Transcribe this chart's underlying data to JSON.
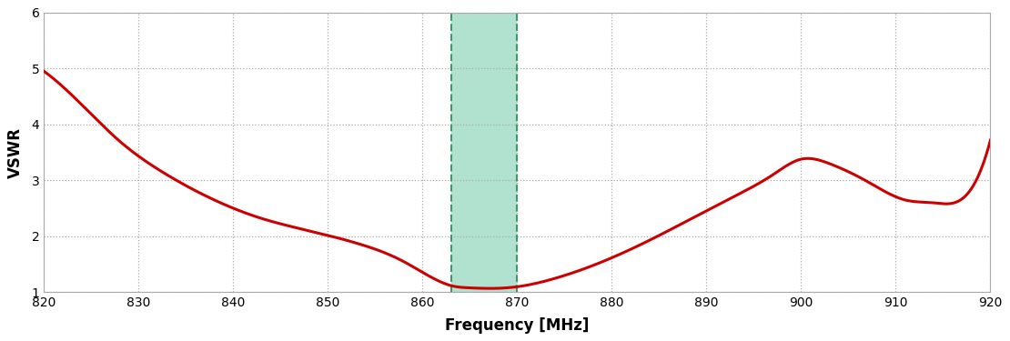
{
  "title": "",
  "xlabel": "Frequency [MHz]",
  "ylabel": "VSWR",
  "xlim": [
    820,
    920
  ],
  "ylim": [
    1,
    6
  ],
  "xticks": [
    820,
    830,
    840,
    850,
    860,
    870,
    880,
    890,
    900,
    910,
    920
  ],
  "yticks": [
    1,
    2,
    3,
    4,
    5,
    6
  ],
  "grid_color": "#aaaaaa",
  "line_color": "#cc0000",
  "line_width": 2.2,
  "shade_x1": 863,
  "shade_x2": 870,
  "shade_color": "#7dcfb0",
  "shade_alpha": 0.6,
  "dashed_line_color": "#3a9a6a",
  "background_color": "#ffffff",
  "knot_x": [
    820,
    824,
    828,
    833,
    838,
    843,
    848,
    853,
    858,
    862,
    863,
    865,
    867,
    870,
    874,
    878,
    883,
    888,
    893,
    897,
    900,
    903,
    907,
    911,
    914,
    917,
    920
  ],
  "knot_y": [
    4.95,
    4.35,
    3.7,
    3.1,
    2.65,
    2.32,
    2.1,
    1.88,
    1.55,
    1.18,
    1.12,
    1.08,
    1.07,
    1.1,
    1.25,
    1.48,
    1.85,
    2.28,
    2.72,
    3.1,
    3.38,
    3.3,
    2.98,
    2.65,
    2.6,
    2.67,
    3.72
  ]
}
